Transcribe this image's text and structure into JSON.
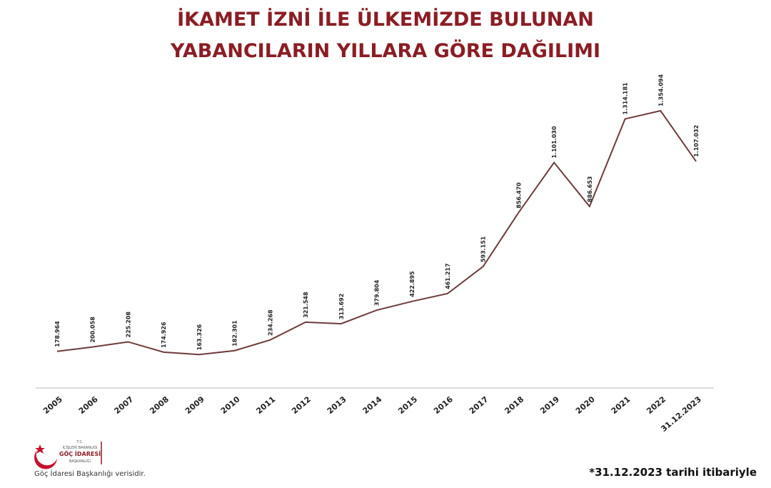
{
  "chart_data": {
    "type": "line",
    "title": "İKAMET İZNİ İLE ÜLKEMİZDE BULUNAN YABANCILARIN YILLARA GÖRE DAĞILIMI",
    "categories": [
      "2005",
      "2006",
      "2007",
      "2008",
      "2009",
      "2010",
      "2011",
      "2012",
      "2013",
      "2014",
      "2015",
      "2016",
      "2017",
      "2018",
      "2019",
      "2020",
      "2021",
      "2022",
      "31.12.2023"
    ],
    "values": [
      178964,
      200058,
      225208,
      174926,
      163326,
      182301,
      234268,
      321548,
      313692,
      379804,
      422895,
      461217,
      593151,
      856470,
      1101030,
      886653,
      1314181,
      1354094,
      1107032
    ],
    "value_labels": [
      "178.964",
      "200.058",
      "225.208",
      "174.926",
      "163.326",
      "182.301",
      "234.268",
      "321.548",
      "313.692",
      "379.804",
      "422.895",
      "461.217",
      "593.151",
      "856.470",
      "1.101.030",
      "886.653",
      "1.314.181",
      "1.354.094",
      "1.107.032"
    ],
    "color": "#6e3b3b"
  },
  "footnote": "*31.12.2023 tarihi itibariyle",
  "source": "Göç İdaresi Başkanlığı verisidir.",
  "logo": {
    "line1": "T.C.",
    "line2": "İÇİŞLERİ BAKANLIĞI",
    "line3": "GÖÇ İDARESİ",
    "line4": "BAŞKANLIĞI"
  }
}
